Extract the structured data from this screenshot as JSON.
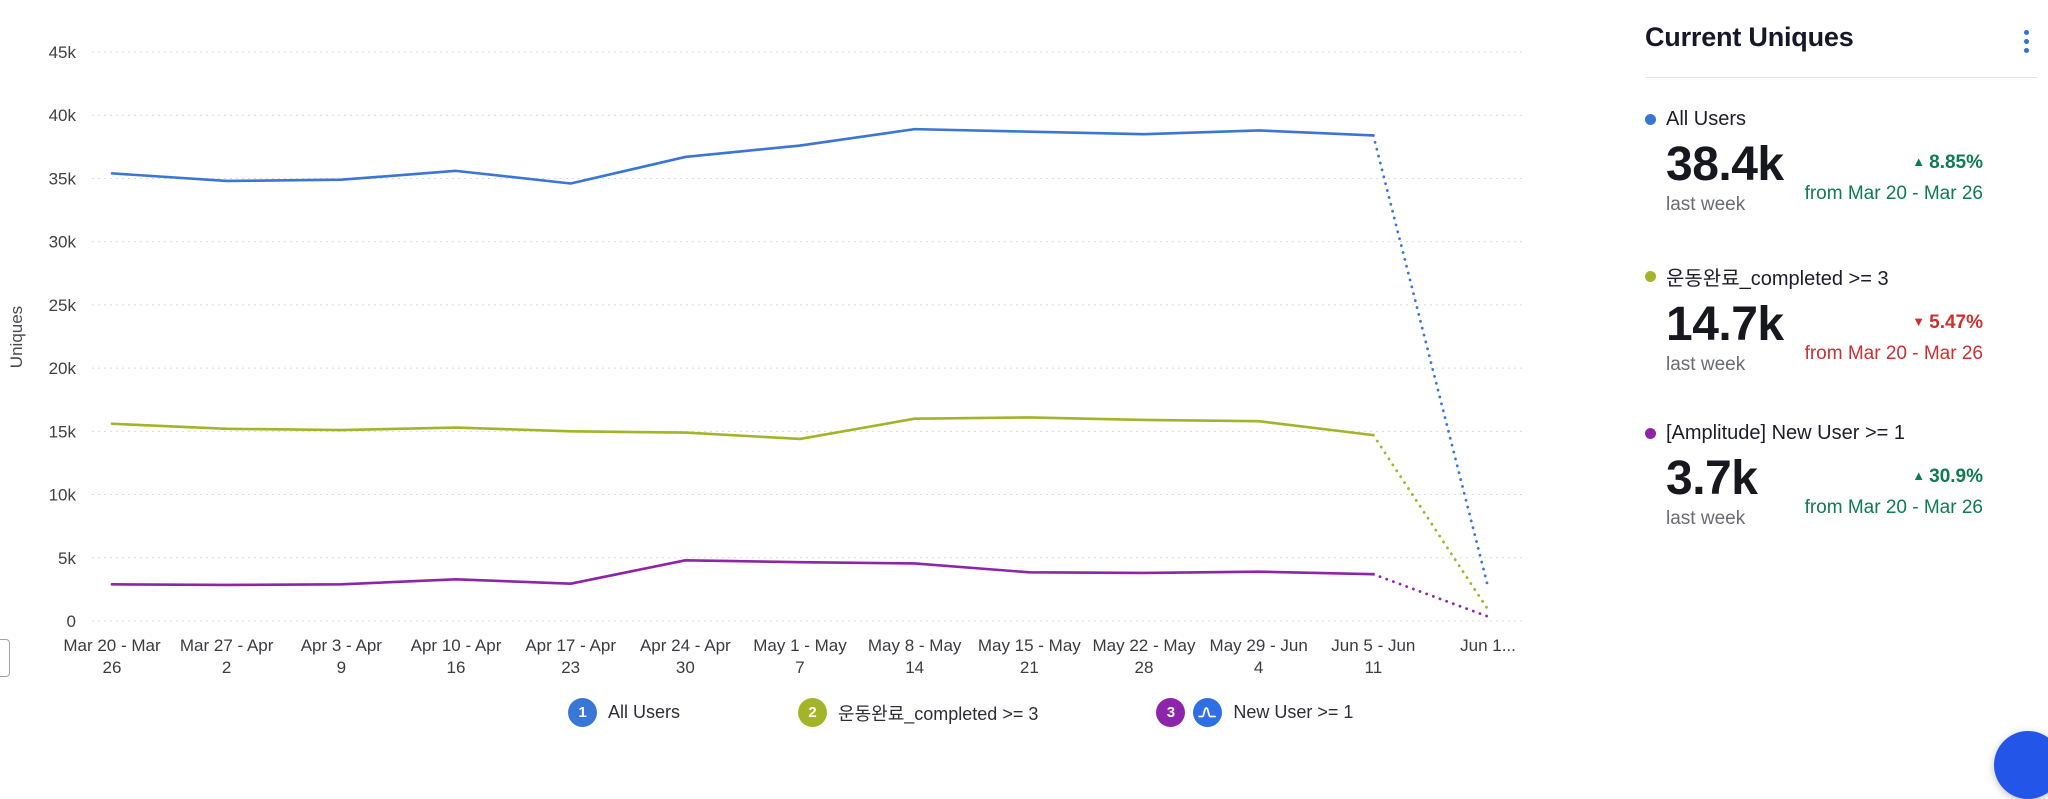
{
  "panel": {
    "title": "Current Uniques",
    "entries": [
      {
        "label": "All Users",
        "dot_color": "#3a76d6",
        "value": "38.4k",
        "period": "last week",
        "direction": "up",
        "arrow": "▲",
        "change": "8.85%",
        "change_color": "#0e7b52",
        "range": "from Mar 20 - Mar 26"
      },
      {
        "label": "운동완료_completed >= 3",
        "dot_color": "#a3b429",
        "value": "14.7k",
        "period": "last week",
        "direction": "down",
        "arrow": "▼",
        "change": "5.47%",
        "change_color": "#ce2f2f",
        "range": "from Mar 20 - Mar 26"
      },
      {
        "label": "[Amplitude] New User >= 1",
        "dot_color": "#8e24aa",
        "value": "3.7k",
        "period": "last week",
        "direction": "up",
        "arrow": "▲",
        "change": "30.9%",
        "change_color": "#0e7b52",
        "range": "from Mar 20 - Mar 26"
      }
    ]
  },
  "chart_data": {
    "type": "line",
    "title": "",
    "xlabel": "",
    "ylabel": "Uniques",
    "ylim": [
      0,
      45000
    ],
    "grid": true,
    "legend_position": "bottom",
    "yticks": [
      "0",
      "5k",
      "10k",
      "15k",
      "20k",
      "25k",
      "30k",
      "35k",
      "40k",
      "45k"
    ],
    "categories": [
      "Mar 20 - Mar 26",
      "Mar 27 - Apr 2",
      "Apr 3 - Apr 9",
      "Apr 10 - Apr 16",
      "Apr 17 - Apr 23",
      "Apr 24 - Apr 30",
      "May 1 - May 7",
      "May 8 - May 14",
      "May 15 - May 21",
      "May 22 - May 28",
      "May 29 - Jun 4",
      "Jun 5 - Jun 11",
      "Jun 1..."
    ],
    "last_segment_dotted": true,
    "series": [
      {
        "name": "All Users",
        "color": "#3a76d6",
        "values": [
          35400,
          34800,
          34900,
          35600,
          34600,
          36700,
          37600,
          38900,
          38700,
          38500,
          38800,
          38400,
          2700
        ]
      },
      {
        "name": "운동완료_completed >= 3",
        "color": "#a3b429",
        "values": [
          15600,
          15200,
          15100,
          15300,
          15000,
          14900,
          14400,
          16000,
          16100,
          15900,
          15800,
          14700,
          900
        ]
      },
      {
        "name": "[Amplitude] New User >= 1",
        "color": "#8e24aa",
        "values": [
          2900,
          2850,
          2900,
          3300,
          2950,
          4800,
          4650,
          4550,
          3850,
          3800,
          3900,
          3700,
          350
        ]
      }
    ],
    "legend": [
      {
        "badge": "1",
        "badge_color": "#3a76d6",
        "label": "All Users",
        "amplitude_icon": false
      },
      {
        "badge": "2",
        "badge_color": "#a3b429",
        "label": "운동완료_completed >= 3",
        "amplitude_icon": false
      },
      {
        "badge": "3",
        "badge_color": "#8e24aa",
        "label": "New User >= 1",
        "amplitude_icon": true
      }
    ]
  }
}
